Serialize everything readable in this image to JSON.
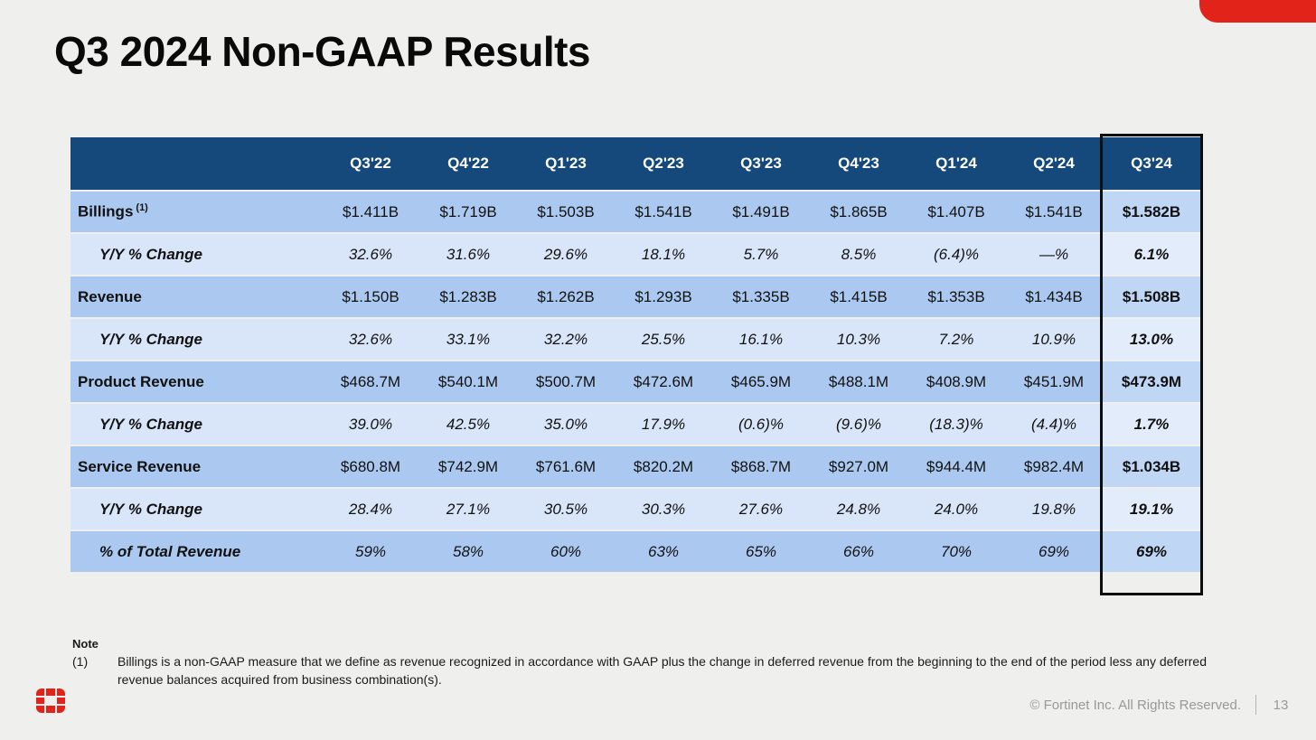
{
  "slide": {
    "title": "Q3 2024 Non-GAAP Results"
  },
  "colors": {
    "accent_red": "#e2231a",
    "header_navy": "#15497b",
    "row_dark": "#abc9f0",
    "row_light": "#d9e5f8",
    "row_dark_hl": "#bfd6f4",
    "row_light_hl": "#e3ecfb",
    "slide_bg": "#efefed",
    "footer_gray": "#999999"
  },
  "table": {
    "columns": [
      "Q3'22",
      "Q4'22",
      "Q1'23",
      "Q2'23",
      "Q3'23",
      "Q4'23",
      "Q1'24",
      "Q2'24",
      "Q3'24"
    ],
    "highlight_column": "Q3'24",
    "rows": [
      {
        "label": "Billings",
        "sup": "(1)",
        "indent": false,
        "shade": "dark",
        "italic": false,
        "values": [
          "$1.411B",
          "$1.719B",
          "$1.503B",
          "$1.541B",
          "$1.491B",
          "$1.865B",
          "$1.407B",
          "$1.541B",
          "$1.582B"
        ]
      },
      {
        "label": "Y/Y % Change",
        "sup": "",
        "indent": true,
        "shade": "light",
        "italic": true,
        "values": [
          "32.6%",
          "31.6%",
          "29.6%",
          "18.1%",
          "5.7%",
          "8.5%",
          "(6.4)%",
          "—%",
          "6.1%"
        ]
      },
      {
        "label": "Revenue",
        "sup": "",
        "indent": false,
        "shade": "dark",
        "italic": false,
        "values": [
          "$1.150B",
          "$1.283B",
          "$1.262B",
          "$1.293B",
          "$1.335B",
          "$1.415B",
          "$1.353B",
          "$1.434B",
          "$1.508B"
        ]
      },
      {
        "label": "Y/Y % Change",
        "sup": "",
        "indent": true,
        "shade": "light",
        "italic": true,
        "values": [
          "32.6%",
          "33.1%",
          "32.2%",
          "25.5%",
          "16.1%",
          "10.3%",
          "7.2%",
          "10.9%",
          "13.0%"
        ]
      },
      {
        "label": "Product Revenue",
        "sup": "",
        "indent": false,
        "shade": "dark",
        "italic": false,
        "values": [
          "$468.7M",
          "$540.1M",
          "$500.7M",
          "$472.6M",
          "$465.9M",
          "$488.1M",
          "$408.9M",
          "$451.9M",
          "$473.9M"
        ]
      },
      {
        "label": "Y/Y % Change",
        "sup": "",
        "indent": true,
        "shade": "light",
        "italic": true,
        "values": [
          "39.0%",
          "42.5%",
          "35.0%",
          "17.9%",
          "(0.6)%",
          "(9.6)%",
          "(18.3)%",
          "(4.4)%",
          "1.7%"
        ]
      },
      {
        "label": "Service Revenue",
        "sup": "",
        "indent": false,
        "shade": "dark",
        "italic": false,
        "values": [
          "$680.8M",
          "$742.9M",
          "$761.6M",
          "$820.2M",
          "$868.7M",
          "$927.0M",
          "$944.4M",
          "$982.4M",
          "$1.034B"
        ]
      },
      {
        "label": "Y/Y % Change",
        "sup": "",
        "indent": true,
        "shade": "light",
        "italic": true,
        "values": [
          "28.4%",
          "27.1%",
          "30.5%",
          "30.3%",
          "27.6%",
          "24.8%",
          "24.0%",
          "19.8%",
          "19.1%"
        ]
      },
      {
        "label": "% of Total Revenue",
        "sup": "",
        "indent": true,
        "shade": "dark",
        "italic": true,
        "values": [
          "59%",
          "58%",
          "60%",
          "63%",
          "65%",
          "66%",
          "70%",
          "69%",
          "69%"
        ]
      }
    ]
  },
  "note": {
    "label": "Note",
    "number": "(1)",
    "text": "Billings is a non-GAAP measure that we define as revenue recognized in accordance with GAAP plus the change in deferred revenue from the beginning to the end of the period less any deferred revenue balances acquired from business combination(s)."
  },
  "footer": {
    "copyright": "© Fortinet Inc. All Rights Reserved.",
    "page_number": "13"
  }
}
